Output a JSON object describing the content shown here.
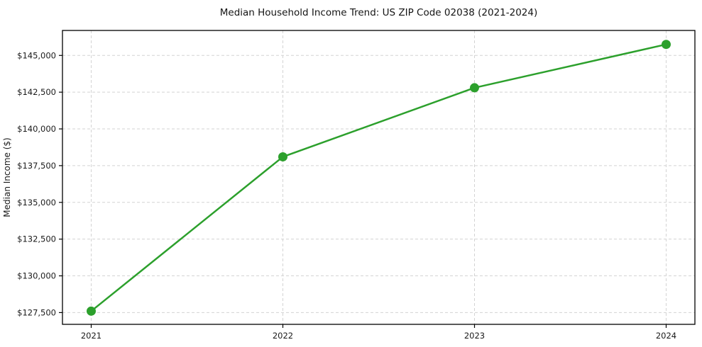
{
  "chart_data": {
    "type": "line",
    "title": "Median Household Income Trend: US ZIP Code 02038 (2021-2024)",
    "xlabel": "",
    "ylabel": "Median Income ($)",
    "series_name": "median-household-income",
    "x": [
      2021,
      2022,
      2023,
      2024
    ],
    "x_tick_labels": [
      "2021",
      "2022",
      "2023",
      "2024"
    ],
    "values": [
      127600,
      138100,
      142800,
      145750
    ],
    "y_tick_values": [
      127500,
      130000,
      132500,
      135000,
      137500,
      140000,
      142500,
      145000
    ],
    "y_tick_labels": [
      "$127,500",
      "$130,000",
      "$132,500",
      "$135,000",
      "$137,500",
      "$140,000",
      "$142,500",
      "$145,000"
    ],
    "xlim": [
      2020.85,
      2024.15
    ],
    "ylim": [
      126700,
      146700
    ],
    "grid": "dashed, horizontal and vertical at ticks",
    "legend": "none",
    "colors": {
      "line": "#2ca02c",
      "marker": "#2ca02c",
      "grid": "#d3d3d3",
      "spine": "#000000",
      "text": "#1a1a1a",
      "background": "#ffffff"
    }
  }
}
